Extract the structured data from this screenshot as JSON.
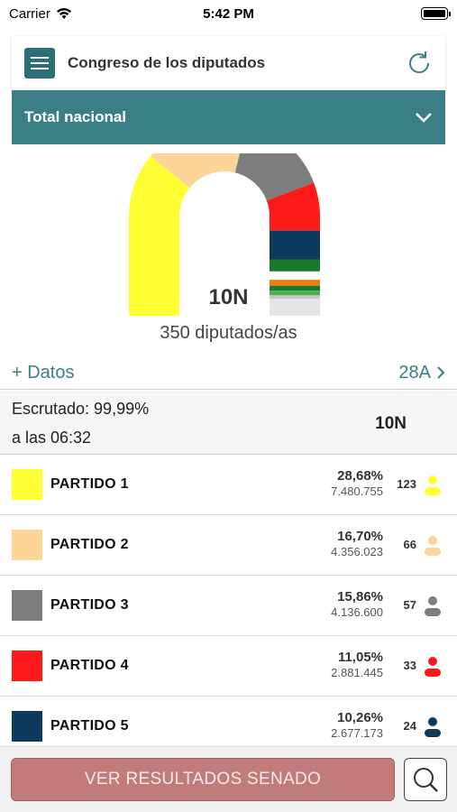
{
  "status": {
    "carrier": "Carrier",
    "time": "5:42 PM"
  },
  "header": {
    "title": "Congreso de los diputados"
  },
  "region": {
    "label": "Total nacional"
  },
  "chart": {
    "election_label": "10N",
    "subtitle": "350 diputados/as"
  },
  "chart_data": {
    "type": "pie",
    "total": 350,
    "segments": [
      {
        "label": "PARTIDO 1",
        "value": 123,
        "color": "#ffff33"
      },
      {
        "label": "PARTIDO 2",
        "value": 66,
        "color": "#fdd598"
      },
      {
        "label": "PARTIDO 3",
        "value": 57,
        "color": "#7d7d7d"
      },
      {
        "label": "PARTIDO 4",
        "value": 33,
        "color": "#ff1a1a"
      },
      {
        "label": "PARTIDO 5",
        "value": 24,
        "color": "#0e3a5e"
      },
      {
        "label": "",
        "value": 10,
        "color": "#1a7a2c"
      },
      {
        "label": "",
        "value": 7,
        "color": "#ffffff"
      },
      {
        "label": "",
        "value": 5,
        "color": "#ee7d10"
      },
      {
        "label": "",
        "value": 4,
        "color": "#1a7a2c"
      },
      {
        "label": "",
        "value": 4,
        "color": "#4caf50"
      },
      {
        "label": "",
        "value": 3,
        "color": "#c8c8c8"
      },
      {
        "label": "",
        "value": 14,
        "color": "#e6e6e6"
      }
    ]
  },
  "links": {
    "more_data": "+ Datos",
    "previous": "28A"
  },
  "scrutiny": {
    "percent": "Escrutado: 99,99%",
    "time": "a las 06:32",
    "tag": "10N"
  },
  "parties": [
    {
      "name": "PARTIDO 1",
      "color": "#ffff33",
      "percent": "28,68%",
      "votes": "7.480.755",
      "seats": "123"
    },
    {
      "name": "PARTIDO 2",
      "color": "#fdd598",
      "percent": "16,70%",
      "votes": "4.356.023",
      "seats": "66"
    },
    {
      "name": "PARTIDO 3",
      "color": "#7d7d7d",
      "percent": "15,86%",
      "votes": "4.136.600",
      "seats": "57"
    },
    {
      "name": "PARTIDO 4",
      "color": "#ff1a1a",
      "percent": "11,05%",
      "votes": "2.881.445",
      "seats": "33"
    },
    {
      "name": "PARTIDO 5",
      "color": "#0e3a5e",
      "percent": "10,26%",
      "votes": "2.677.173",
      "seats": "24"
    }
  ],
  "footer": {
    "senado_label": "VER RESULTADOS SENADO"
  },
  "icons": {
    "menu": "menu-icon",
    "refresh": "refresh-icon",
    "chevron": "chevron-down-icon",
    "search": "search-icon",
    "person": "person-icon",
    "wifi": "wifi-icon",
    "battery": "battery-icon"
  }
}
